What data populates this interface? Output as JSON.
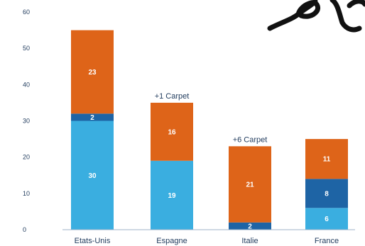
{
  "chart_data": {
    "type": "bar",
    "stacked": true,
    "title": "",
    "xlabel": "",
    "ylabel": "",
    "ylim": [
      0,
      60
    ],
    "yticks": [
      0,
      10,
      20,
      30,
      40,
      50,
      60
    ],
    "grid": false,
    "categories": [
      "Etats-Unis",
      "Espagne",
      "Italie",
      "France"
    ],
    "series": [
      {
        "color": "#3aaee0",
        "values": [
          30,
          19,
          0,
          6
        ]
      },
      {
        "color": "#1e64a5",
        "values": [
          2,
          0,
          2,
          8
        ]
      },
      {
        "color": "#de6419",
        "values": [
          23,
          16,
          21,
          11
        ]
      }
    ],
    "annotations": [
      {
        "category": "Espagne",
        "text": "+1 Carpet"
      },
      {
        "category": "Italie",
        "text": "+6 Carpet"
      }
    ]
  },
  "decoration": {
    "scribble-color": "#111111"
  }
}
